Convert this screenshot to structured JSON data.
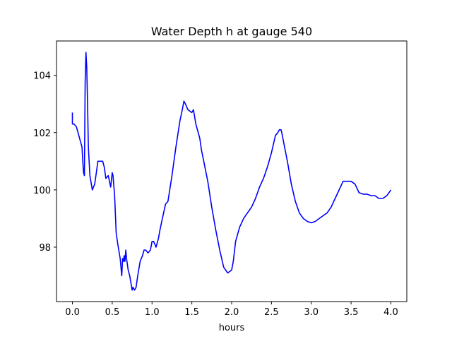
{
  "chart_data": {
    "type": "line",
    "title": "Water Depth h at gauge 540",
    "xlabel": "hours",
    "ylabel": "",
    "xlim": [
      -0.2,
      4.2
    ],
    "ylim": [
      96.1,
      105.2
    ],
    "grid": false,
    "xticks": [
      0.0,
      0.5,
      1.0,
      1.5,
      2.0,
      2.5,
      3.0,
      3.5,
      4.0
    ],
    "xtick_labels": [
      "0.0",
      "0.5",
      "1.0",
      "1.5",
      "2.0",
      "2.5",
      "3.0",
      "3.5",
      "4.0"
    ],
    "yticks": [
      98,
      100,
      102,
      104
    ],
    "ytick_labels": [
      "98",
      "100",
      "102",
      "104"
    ],
    "colors": {
      "series": "#0000ff",
      "axes": "#000000",
      "background": "#ffffff"
    },
    "series": [
      {
        "color": "#0000ff",
        "x": [
          0.0,
          0.0,
          0.02,
          0.05,
          0.08,
          0.1,
          0.12,
          0.13,
          0.14,
          0.15,
          0.16,
          0.17,
          0.18,
          0.19,
          0.2,
          0.22,
          0.25,
          0.28,
          0.3,
          0.32,
          0.35,
          0.38,
          0.4,
          0.42,
          0.45,
          0.48,
          0.5,
          0.51,
          0.53,
          0.55,
          0.57,
          0.6,
          0.62,
          0.63,
          0.64,
          0.65,
          0.66,
          0.67,
          0.68,
          0.7,
          0.72,
          0.75,
          0.76,
          0.78,
          0.8,
          0.82,
          0.85,
          0.88,
          0.9,
          0.92,
          0.95,
          0.98,
          1.0,
          1.02,
          1.05,
          1.08,
          1.1,
          1.13,
          1.17,
          1.2,
          1.25,
          1.3,
          1.35,
          1.38,
          1.4,
          1.42,
          1.45,
          1.5,
          1.52,
          1.55,
          1.6,
          1.62,
          1.65,
          1.7,
          1.75,
          1.8,
          1.85,
          1.9,
          1.95,
          2.0,
          2.02,
          2.05,
          2.1,
          2.15,
          2.2,
          2.25,
          2.3,
          2.35,
          2.4,
          2.45,
          2.5,
          2.55,
          2.58,
          2.6,
          2.62,
          2.63,
          2.65,
          2.7,
          2.75,
          2.8,
          2.85,
          2.9,
          2.95,
          3.0,
          3.05,
          3.1,
          3.15,
          3.2,
          3.25,
          3.3,
          3.35,
          3.4,
          3.45,
          3.5,
          3.55,
          3.6,
          3.65,
          3.7,
          3.75,
          3.8,
          3.85,
          3.9,
          3.95,
          4.0
        ],
        "y": [
          102.7,
          102.3,
          102.3,
          102.2,
          101.9,
          101.7,
          101.5,
          101.0,
          100.6,
          100.5,
          103.8,
          104.8,
          104.3,
          103.0,
          101.5,
          100.5,
          100.0,
          100.2,
          100.6,
          101.0,
          101.0,
          101.0,
          100.8,
          100.4,
          100.5,
          100.1,
          100.6,
          100.5,
          99.8,
          98.5,
          98.1,
          97.6,
          97.0,
          97.6,
          97.5,
          97.7,
          97.5,
          97.9,
          97.6,
          97.2,
          97.0,
          96.5,
          96.6,
          96.5,
          96.6,
          97.0,
          97.5,
          97.7,
          97.9,
          97.9,
          97.8,
          97.9,
          98.2,
          98.2,
          98.0,
          98.3,
          98.6,
          99.0,
          99.5,
          99.6,
          100.5,
          101.5,
          102.4,
          102.8,
          103.1,
          103.0,
          102.8,
          102.7,
          102.8,
          102.3,
          101.8,
          101.4,
          101.0,
          100.3,
          99.4,
          98.6,
          97.9,
          97.3,
          97.1,
          97.2,
          97.5,
          98.2,
          98.7,
          99.0,
          99.2,
          99.4,
          99.7,
          100.1,
          100.4,
          100.8,
          101.3,
          101.9,
          102.0,
          102.1,
          102.1,
          102.0,
          101.7,
          101.0,
          100.2,
          99.6,
          99.2,
          99.0,
          98.9,
          98.85,
          98.9,
          99.0,
          99.1,
          99.2,
          99.4,
          99.7,
          100.0,
          100.3,
          100.3,
          100.3,
          100.2,
          99.9,
          99.85,
          99.85,
          99.8,
          99.8,
          99.7,
          99.7,
          99.8,
          100.0
        ]
      }
    ]
  }
}
